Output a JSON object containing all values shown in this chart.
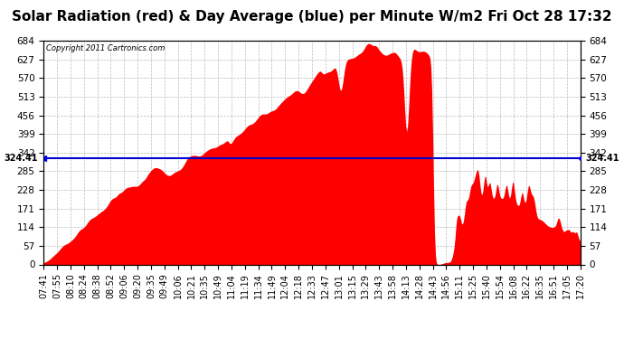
{
  "title": "Solar Radiation (red) & Day Average (blue) per Minute W/m2 Fri Oct 28 17:32",
  "copyright": "Copyright 2011 Cartronics.com",
  "avg_value": 324.41,
  "ymax": 684.0,
  "ymin": 0.0,
  "yticks": [
    0.0,
    57.0,
    114.0,
    171.0,
    228.0,
    285.0,
    342.0,
    399.0,
    456.0,
    513.0,
    570.0,
    627.0,
    684.0
  ],
  "xtick_labels": [
    "07:41",
    "07:55",
    "08:10",
    "08:24",
    "08:38",
    "08:52",
    "09:06",
    "09:20",
    "09:35",
    "09:49",
    "10:06",
    "10:21",
    "10:35",
    "10:49",
    "11:04",
    "11:19",
    "11:34",
    "11:49",
    "12:04",
    "12:18",
    "12:33",
    "12:47",
    "13:01",
    "13:15",
    "13:29",
    "13:43",
    "13:58",
    "14:13",
    "14:28",
    "14:43",
    "14:56",
    "15:11",
    "15:25",
    "15:40",
    "15:54",
    "16:08",
    "16:22",
    "16:35",
    "16:51",
    "17:05",
    "17:20"
  ],
  "fill_color": "#ff0000",
  "line_color": "#0000cc",
  "bg_color": "#ffffff",
  "grid_color": "#bbbbbb",
  "title_fontsize": 11,
  "axis_fontsize": 7.5
}
